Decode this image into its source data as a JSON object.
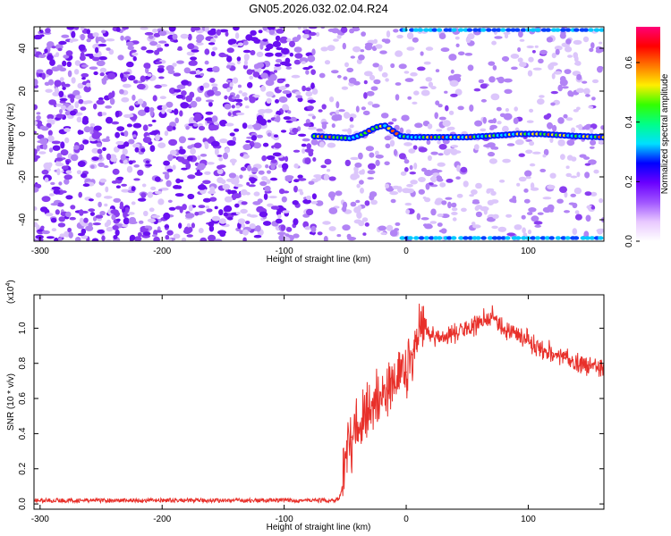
{
  "title": "GN05.2026.032.02.04.R24",
  "colors": {
    "snr_line": "#e8302a",
    "spectrogram_base": "#ffffff",
    "spectrogram_noise": "#8a3df0",
    "colormap": [
      "#ffffff",
      "#e8c8ff",
      "#a055ff",
      "#6a00ff",
      "#0000ff",
      "#00e0ff",
      "#00ff88",
      "#33ff00",
      "#ffee00",
      "#ff7700",
      "#ff0000",
      "#ff0077"
    ]
  },
  "chart_data": [
    {
      "type": "heatmap",
      "title": "GN05.2026.032.02.04.R24",
      "xlabel": "Height of straight line (km)",
      "ylabel": "Frequency (Hz)",
      "xlim": [
        -305,
        162
      ],
      "ylim": [
        -50,
        50
      ],
      "xticks": [
        -300,
        -200,
        -100,
        0,
        100
      ],
      "yticks": [
        -40,
        -20,
        0,
        20,
        40
      ],
      "colorbar": {
        "label": "Normalized spectral amplitude",
        "range": [
          0,
          0.72
        ],
        "ticks": [
          0.0,
          0.2,
          0.4,
          0.6
        ]
      },
      "signal_onset_km": -75,
      "carrier_trace": [
        {
          "x": -75,
          "y": -1
        },
        {
          "x": -60,
          "y": -1.5
        },
        {
          "x": -45,
          "y": -2
        },
        {
          "x": -35,
          "y": 0
        },
        {
          "x": -25,
          "y": 3
        },
        {
          "x": -18,
          "y": 4
        },
        {
          "x": -10,
          "y": 1
        },
        {
          "x": -5,
          "y": -1
        },
        {
          "x": 5,
          "y": -1.5
        },
        {
          "x": 20,
          "y": -1.5
        },
        {
          "x": 50,
          "y": -1.5
        },
        {
          "x": 80,
          "y": -0.5
        },
        {
          "x": 90,
          "y": 0
        },
        {
          "x": 110,
          "y": 0
        },
        {
          "x": 140,
          "y": -1
        },
        {
          "x": 162,
          "y": -1.5
        }
      ],
      "band_edges_hz": [
        -48.5,
        48.5
      ]
    },
    {
      "type": "line",
      "xlabel": "Height of straight line (km)",
      "ylabel": "SNR (10 * v/v)",
      "y_multiplier_label": "(x10",
      "y_multiplier_exponent": "4",
      "y_multiplier_close": ")",
      "xlim": [
        -305,
        162
      ],
      "ylim": [
        -0.03,
        1.19
      ],
      "xticks": [
        -300,
        -200,
        -100,
        0,
        100
      ],
      "yticks": [
        0.0,
        0.2,
        0.4,
        0.6,
        0.8,
        1.0
      ],
      "ytick_labels": [
        "0.0",
        "0.2",
        "0.4",
        "0.6",
        "0.8",
        "1.0"
      ],
      "series": [
        {
          "x": [
            -305,
            -250,
            -200,
            -150,
            -100,
            -60,
            -55,
            -52,
            -50,
            -45,
            -40,
            -35,
            -30,
            -25,
            -20,
            -15,
            -10,
            -5,
            0,
            5,
            10,
            15,
            20,
            30,
            40,
            50,
            60,
            70,
            75,
            80,
            90,
            100,
            110,
            120,
            130,
            140,
            150,
            162
          ],
          "values": [
            0.02,
            0.02,
            0.02,
            0.02,
            0.02,
            0.02,
            0.03,
            0.1,
            0.28,
            0.38,
            0.43,
            0.47,
            0.52,
            0.56,
            0.6,
            0.64,
            0.66,
            0.7,
            0.75,
            0.85,
            0.93,
            1.02,
            0.95,
            0.96,
            0.97,
            1.0,
            1.03,
            1.07,
            1.02,
            1.0,
            0.97,
            0.93,
            0.88,
            0.86,
            0.83,
            0.8,
            0.79,
            0.77
          ]
        }
      ]
    }
  ]
}
